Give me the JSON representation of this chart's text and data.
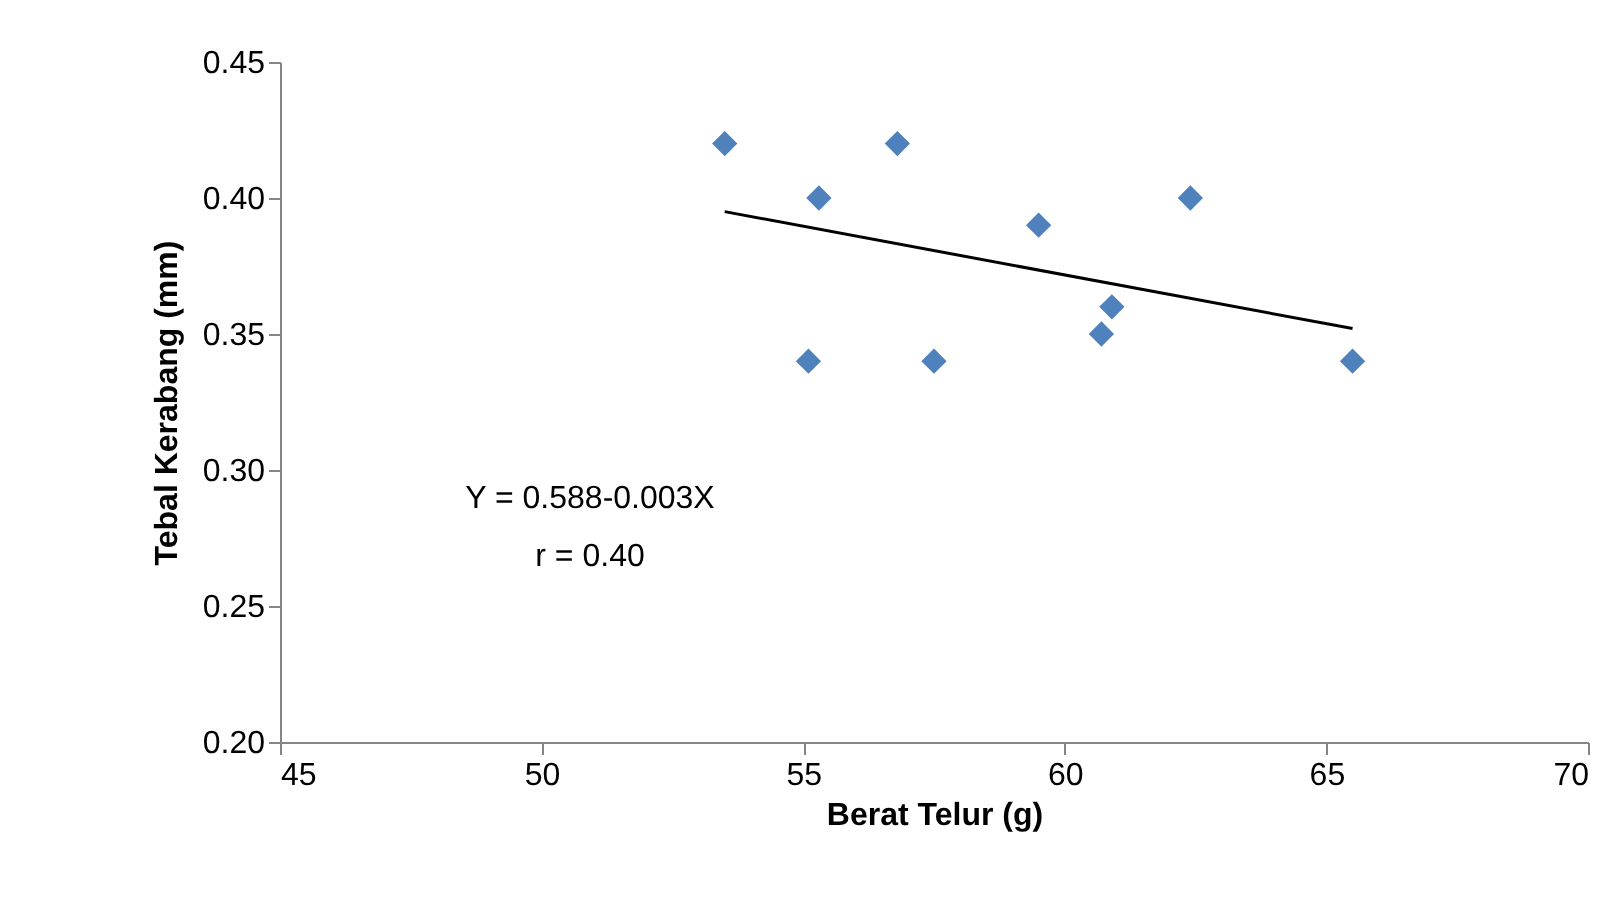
{
  "chart_data": {
    "type": "scatter",
    "xlabel": "Berat Telur (g)",
    "ylabel": "Tebal Kerabang (mm)",
    "marker": "diamond",
    "xlim": [
      45,
      70
    ],
    "xticks": [
      45,
      50,
      55,
      60,
      65,
      70
    ],
    "ylim": [
      0.2,
      0.45
    ],
    "yticks": [
      {
        "value": 0.2,
        "label": "0.20"
      },
      {
        "value": 0.25,
        "label": "0.25"
      },
      {
        "value": 0.3,
        "label": "0.30"
      },
      {
        "value": 0.35,
        "label": "0.35"
      },
      {
        "value": 0.4,
        "label": "0.40"
      },
      {
        "value": 0.45,
        "label": "0.45"
      }
    ],
    "series": [
      {
        "color": "#4f81bd",
        "x": [
          53.5,
          55.3,
          56.8,
          55.1,
          57.5,
          59.5,
          62.4,
          60.9,
          60.7,
          65.5
        ],
        "values": [
          0.42,
          0.4,
          0.42,
          0.34,
          0.34,
          0.39,
          0.4,
          0.36,
          0.35,
          0.34
        ]
      },
      {
        "type": "line",
        "marker": "none",
        "color": "#000000",
        "x": [
          53.5,
          65.5
        ],
        "values": [
          0.395,
          0.352
        ]
      }
    ],
    "annotations": [
      "Y = 0.588-0.003X",
      "r = 0.40"
    ]
  }
}
